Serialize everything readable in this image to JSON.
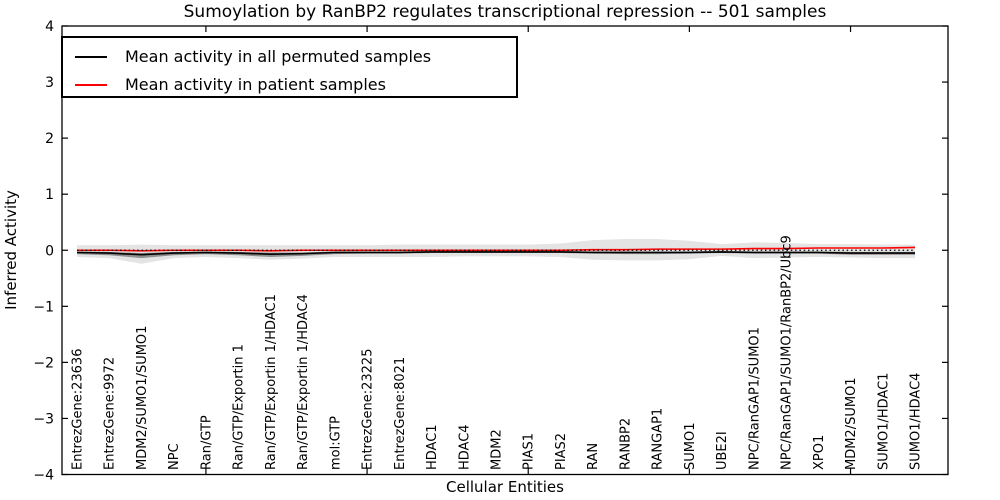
{
  "figure": {
    "title": "Sumoylation by RanBP2 regulates transcriptional repression -- 501 samples",
    "xlabel": "Cellular Entities",
    "ylabel": "Inferred Activity"
  },
  "chart_data": {
    "type": "line",
    "title": "Sumoylation by RanBP2 regulates transcriptional repression -- 501 samples",
    "xlabel": "Cellular Entities",
    "ylabel": "Inferred Activity",
    "ylim": [
      -4,
      4
    ],
    "yticks": [
      -4,
      -3,
      -2,
      -1,
      0,
      1,
      2,
      3,
      4
    ],
    "xtick_category_indices": [
      5,
      10,
      15,
      20,
      25
    ],
    "grid": false,
    "legend_position": "upper left",
    "zero_line": 0,
    "categories": [
      "EntrezGene:23636",
      "EntrezGene:9972",
      "MDM2/SUMO1/SUMO1",
      "NPC",
      "Ran/GTP",
      "Ran/GTP/Exportin 1",
      "Ran/GTP/Exportin 1/HDAC1",
      "Ran/GTP/Exportin 1/HDAC4",
      "mol:GTP",
      "EntrezGene:23225",
      "EntrezGene:8021",
      "HDAC1",
      "HDAC4",
      "MDM2",
      "PIAS1",
      "PIAS2",
      "RAN",
      "RANBP2",
      "RANGAP1",
      "SUMO1",
      "UBE2I",
      "NPC/RanGAP1/SUMO1",
      "NPC/RanGAP1/SUMO1/RanBP2/Ubc9",
      "XPO1",
      "MDM2/SUMO1",
      "SUMO1/HDAC1",
      "SUMO1/HDAC4"
    ],
    "series": [
      {
        "name": "Mean activity in all permuted samples",
        "color": "#000000",
        "style": "solid",
        "values": [
          -0.04,
          -0.05,
          -0.08,
          -0.05,
          -0.04,
          -0.05,
          -0.07,
          -0.06,
          -0.04,
          -0.04,
          -0.04,
          -0.03,
          -0.03,
          -0.03,
          -0.03,
          -0.03,
          -0.04,
          -0.04,
          -0.04,
          -0.04,
          -0.03,
          -0.04,
          -0.04,
          -0.04,
          -0.05,
          -0.05,
          -0.05
        ]
      },
      {
        "name": "Mean activity in patient samples",
        "color": "#ff0000",
        "style": "solid",
        "values": [
          0.0,
          0.0,
          -0.01,
          0.0,
          0.0,
          0.0,
          -0.01,
          0.0,
          0.0,
          0.0,
          0.0,
          0.0,
          0.0,
          0.0,
          0.0,
          0.0,
          0.01,
          0.01,
          0.02,
          0.02,
          0.02,
          0.03,
          0.03,
          0.04,
          0.04,
          0.04,
          0.05
        ]
      }
    ],
    "band": {
      "color": "#e4e4e4",
      "upper": [
        0.09,
        0.09,
        0.1,
        0.09,
        0.09,
        0.09,
        0.09,
        0.09,
        0.09,
        0.09,
        0.1,
        0.1,
        0.1,
        0.1,
        0.1,
        0.12,
        0.18,
        0.2,
        0.2,
        0.17,
        0.11,
        0.14,
        0.13,
        0.11,
        0.11,
        0.1,
        0.1
      ],
      "lower": [
        -0.12,
        -0.14,
        -0.24,
        -0.14,
        -0.12,
        -0.14,
        -0.17,
        -0.15,
        -0.12,
        -0.12,
        -0.12,
        -0.12,
        -0.11,
        -0.11,
        -0.11,
        -0.12,
        -0.17,
        -0.18,
        -0.18,
        -0.16,
        -0.1,
        -0.14,
        -0.13,
        -0.12,
        -0.13,
        -0.14,
        -0.14
      ]
    },
    "inner_band": {
      "color": "#3a3a3a",
      "opacity": 0.5,
      "upper": [
        -0.02,
        -0.03,
        -0.05,
        -0.03,
        -0.02,
        -0.03,
        -0.04,
        -0.04,
        -0.02,
        -0.02,
        -0.02,
        -0.01,
        -0.01,
        -0.01,
        -0.01,
        -0.01,
        -0.02,
        -0.02,
        -0.02,
        -0.02,
        -0.01,
        -0.02,
        -0.02,
        -0.02,
        -0.03,
        -0.03,
        -0.03
      ],
      "lower": [
        -0.07,
        -0.09,
        -0.14,
        -0.09,
        -0.07,
        -0.09,
        -0.12,
        -0.1,
        -0.07,
        -0.06,
        -0.06,
        -0.05,
        -0.05,
        -0.05,
        -0.05,
        -0.05,
        -0.06,
        -0.07,
        -0.07,
        -0.06,
        -0.05,
        -0.06,
        -0.06,
        -0.06,
        -0.08,
        -0.08,
        -0.08
      ]
    }
  },
  "legend": {
    "entries": [
      {
        "label": "Mean activity in all permuted samples",
        "color": "#000000"
      },
      {
        "label": "Mean activity in patient samples",
        "color": "#ff0000"
      }
    ]
  }
}
